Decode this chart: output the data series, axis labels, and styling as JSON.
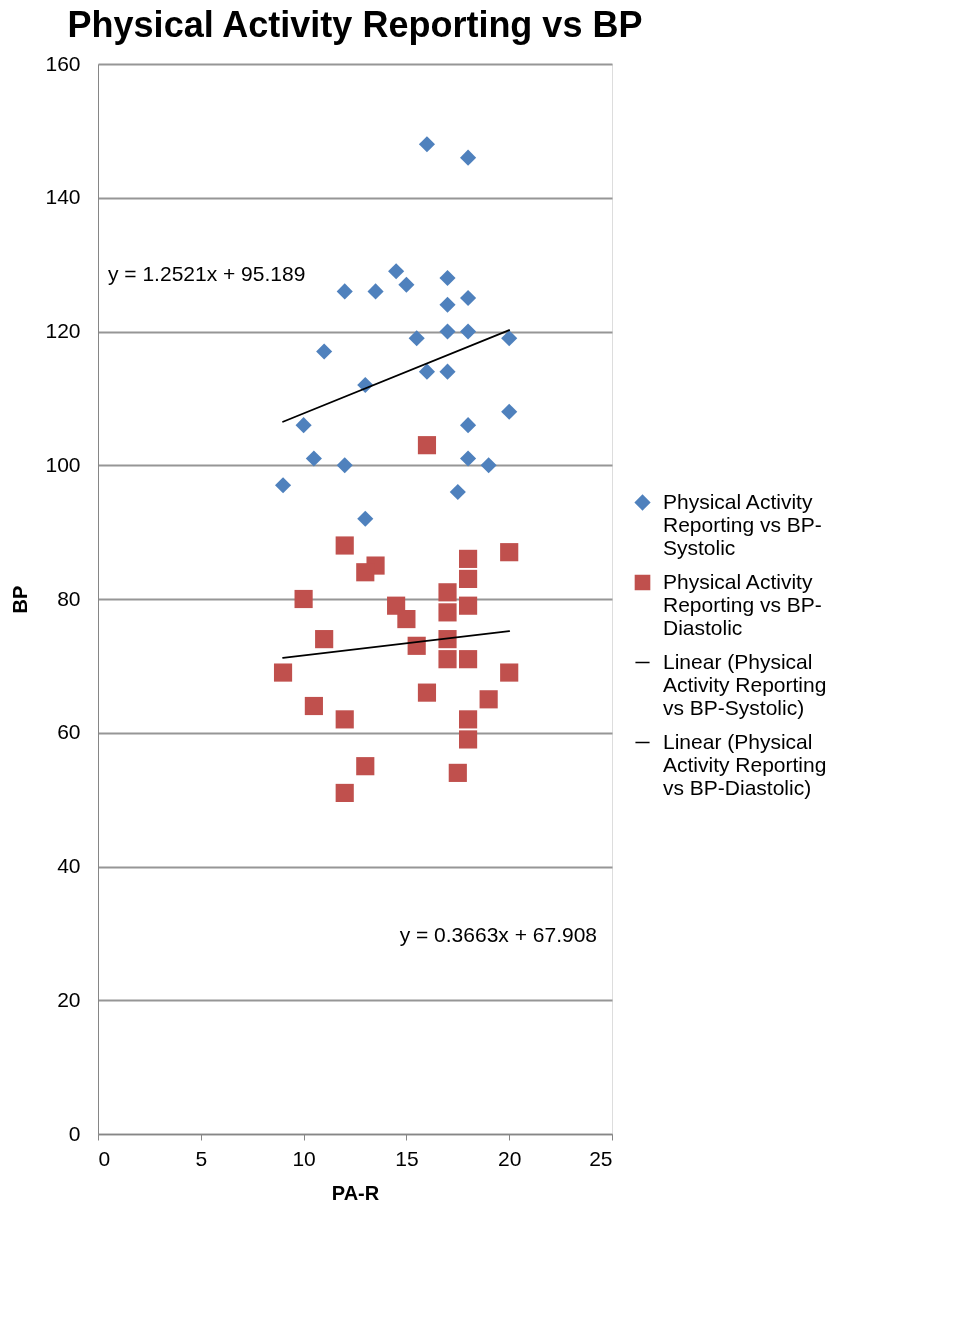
{
  "chart_data": {
    "type": "scatter",
    "title": "Physical Activity Reporting vs BP",
    "xlabel": "PA-R",
    "ylabel": "BP",
    "xlim": [
      0,
      25
    ],
    "xticks": [
      0,
      5,
      10,
      15,
      20,
      25
    ],
    "ylim": [
      0,
      160
    ],
    "yticks": [
      0,
      20,
      40,
      60,
      80,
      100,
      120,
      140,
      160
    ],
    "grid": "y",
    "legend": "right",
    "annotations": [
      "y = 1.2521x + 95.189",
      "y = 0.3663x + 67.908"
    ],
    "series": [
      {
        "name": "Physical Activity Reporting vs BP-Systolic",
        "marker": "diamond",
        "color": "#4f81bd",
        "x": [
          16,
          18,
          14.5,
          17,
          15,
          12,
          13.5,
          18,
          17,
          17,
          18,
          15.5,
          20,
          11,
          16,
          17,
          13,
          10,
          18,
          20,
          10.5,
          18,
          12,
          19,
          9,
          17.5,
          13
        ],
        "values": [
          148,
          146,
          129,
          128,
          127,
          126,
          126,
          125,
          124,
          120,
          120,
          119,
          119,
          117,
          114,
          114,
          112,
          106,
          106,
          108,
          101,
          101,
          100,
          100,
          97,
          96,
          92
        ]
      },
      {
        "name": "Physical Activity Reporting vs BP-Diastolic",
        "marker": "square",
        "color": "#c0504d",
        "x": [
          16,
          12,
          20,
          18,
          13.5,
          13,
          18,
          17,
          10,
          14.5,
          18,
          17,
          15,
          11,
          17,
          15.5,
          17,
          18,
          9,
          20,
          16,
          19,
          10.5,
          12,
          18,
          18,
          13,
          17.5,
          12
        ],
        "values": [
          103,
          88,
          87,
          86,
          85,
          84,
          83,
          81,
          80,
          79,
          79,
          78,
          77,
          74,
          74,
          73,
          71,
          71,
          69,
          69,
          66,
          65,
          64,
          62,
          62,
          59,
          55,
          54,
          51
        ]
      },
      {
        "name": "Linear (Physical Activity Reporting vs BP-Systolic)",
        "type": "line",
        "marker": "none",
        "color": "#000000",
        "x": [
          9,
          20
        ],
        "values": [
          106.5,
          120.2
        ]
      },
      {
        "name": "Linear (Physical Activity Reporting vs BP-Diastolic)",
        "type": "line",
        "marker": "none",
        "color": "#000000",
        "x": [
          9,
          20
        ],
        "values": [
          71.2,
          75.2
        ]
      }
    ]
  }
}
